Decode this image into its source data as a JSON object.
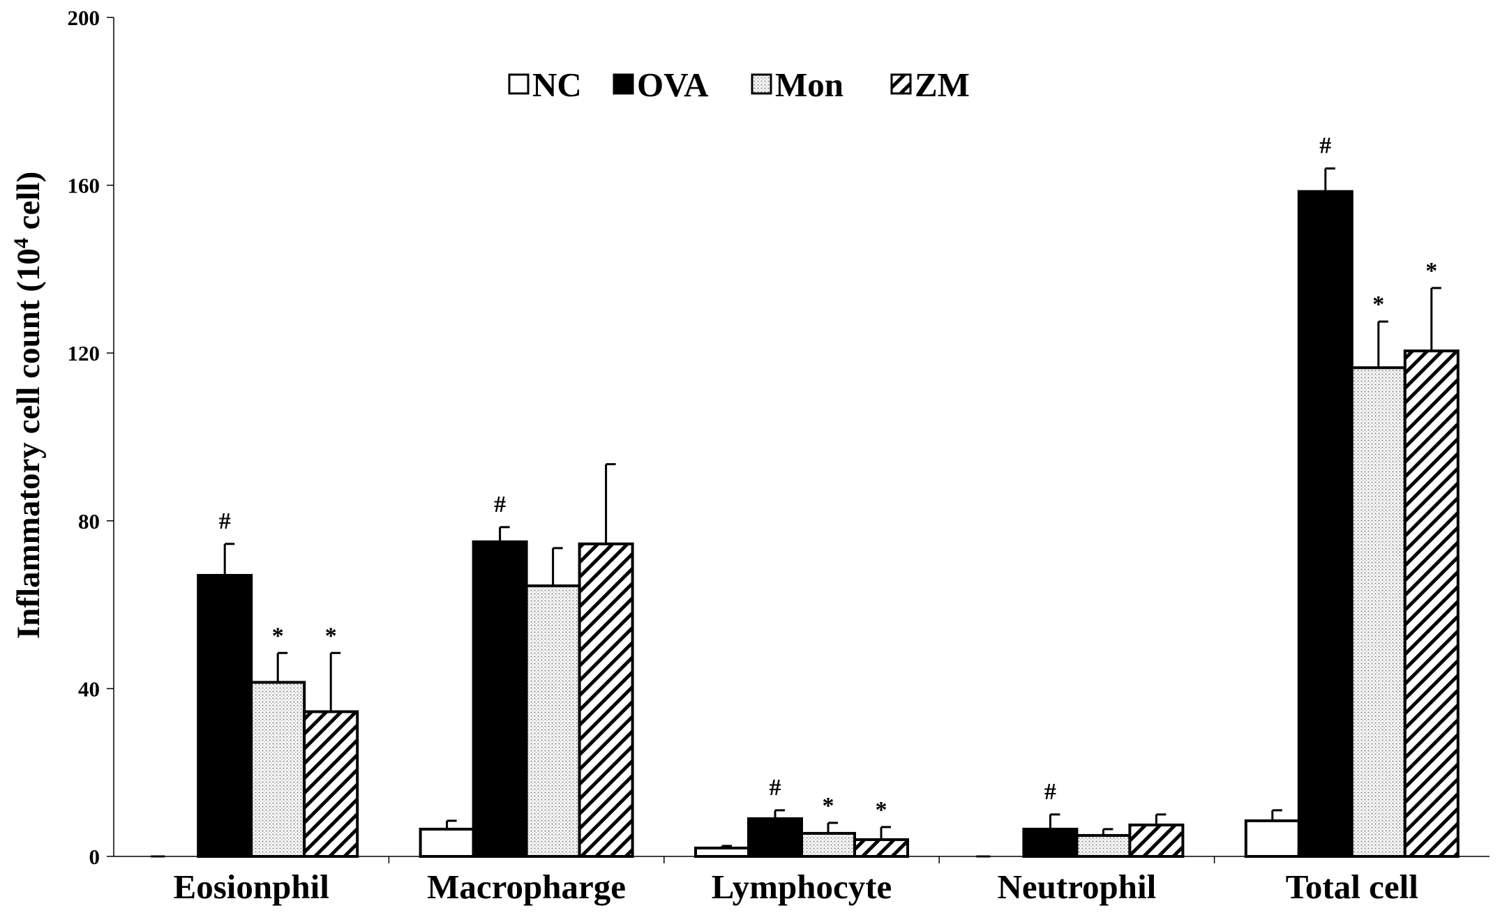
{
  "chart_data": {
    "type": "bar",
    "ylabel_main": "Inflammatory cell count (10",
    "ylabel_sup": "4",
    "ylabel_end": " cell)",
    "ylim": [
      0,
      200
    ],
    "yticks": [
      "0",
      "40",
      "80",
      "120",
      "160",
      "200"
    ],
    "categories": [
      "Eosionphil",
      "Macropharge",
      "Lymphocyte",
      "Neutrophil",
      "Total cell"
    ],
    "legend_position": "top-center",
    "series": [
      {
        "name": "NC",
        "fill": "white",
        "values": [
          0,
          6.5,
          2,
          0,
          8.5
        ],
        "errors": [
          0,
          2,
          0.5,
          0,
          2.5
        ],
        "marks": [
          "",
          "",
          "",
          "",
          ""
        ]
      },
      {
        "name": "OVA",
        "fill": "black",
        "values": [
          67,
          75,
          9,
          6.5,
          158.5
        ],
        "errors": [
          7.5,
          3.5,
          2,
          3.5,
          5.5
        ],
        "marks": [
          "#",
          "#",
          "#",
          "#",
          "#"
        ]
      },
      {
        "name": "Mon",
        "fill": "dotted",
        "values": [
          41.5,
          64.5,
          5.5,
          5,
          116.5
        ],
        "errors": [
          7,
          9,
          2.5,
          1.5,
          11
        ],
        "marks": [
          "*",
          "",
          "*",
          "",
          "*"
        ]
      },
      {
        "name": "ZM",
        "fill": "hatch",
        "values": [
          34.5,
          74.5,
          4,
          7.5,
          120.5
        ],
        "errors": [
          14,
          19,
          3,
          2.5,
          15
        ],
        "marks": [
          "*",
          "",
          "*",
          "",
          "*"
        ]
      }
    ],
    "colors": {
      "dark": "#000000",
      "light": "#ffffff",
      "dot": "#8a8a8a"
    }
  }
}
